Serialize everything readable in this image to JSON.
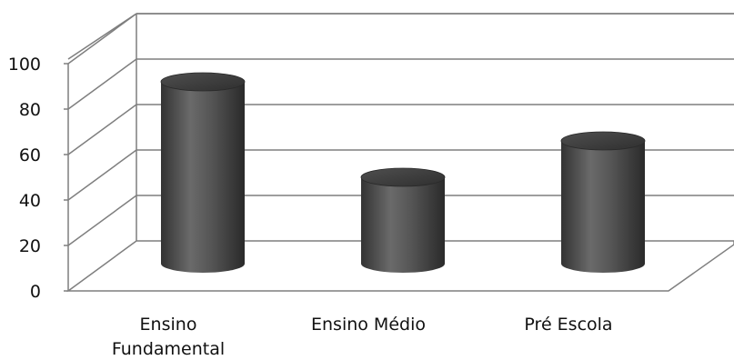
{
  "chart_data": {
    "type": "bar",
    "style": "3d-cylinder",
    "categories": [
      "Ensino Fundamental",
      "Ensino Médio",
      "Pré Escola"
    ],
    "category_label_lines": [
      [
        "Ensino",
        "Fundamental"
      ],
      [
        "Ensino Médio"
      ],
      [
        "Pré Escola"
      ]
    ],
    "values": [
      84,
      42,
      58
    ],
    "yticks": [
      0,
      20,
      40,
      60,
      80,
      100
    ],
    "ylim": [
      0,
      100
    ],
    "grid": true,
    "legend": "none",
    "bar_color": "#4a4a4a",
    "grid_color": "#7f7f7f"
  }
}
